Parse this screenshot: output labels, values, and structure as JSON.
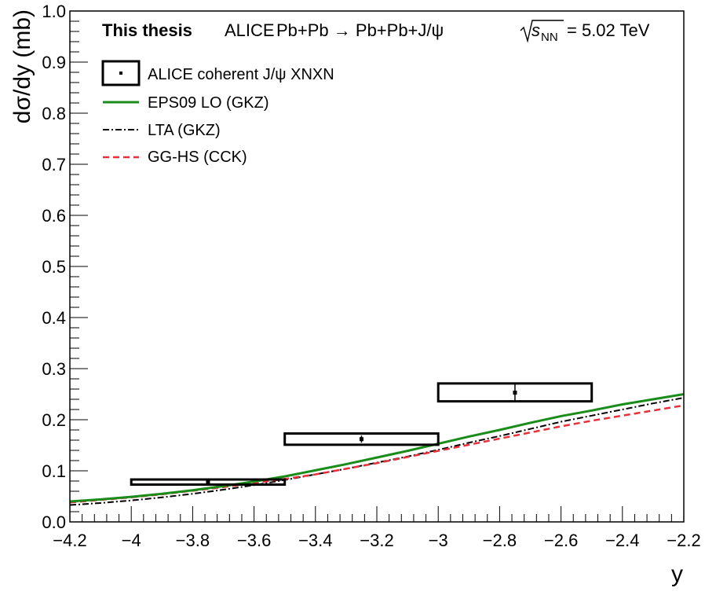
{
  "chart_data": {
    "type": "line",
    "header": {
      "bold": "This thesis",
      "experiment": "ALICE",
      "process": "Pb+Pb → Pb+Pb+J/ψ",
      "energy_symbol": "s",
      "energy_subscript": "NN",
      "energy_value": "= 5.02 TeV"
    },
    "xlabel": "y",
    "ylabel": "dσ/dy (mb)",
    "xlim": [
      -4.2,
      -2.2
    ],
    "ylim": [
      0.0,
      1.0
    ],
    "x_ticks": [
      -4.2,
      -4.0,
      -3.8,
      -3.6,
      -3.4,
      -3.2,
      -3.0,
      -2.8,
      -2.6,
      -2.4,
      -2.2
    ],
    "x_tick_labels": [
      "−4.2",
      "−4",
      "−3.8",
      "−3.6",
      "−3.4",
      "−3.2",
      "−3",
      "−2.8",
      "−2.6",
      "−2.4",
      "−2.2"
    ],
    "y_ticks": [
      0.0,
      0.1,
      0.2,
      0.3,
      0.4,
      0.5,
      0.6,
      0.7,
      0.8,
      0.9,
      1.0
    ],
    "y_tick_labels": [
      "0.0",
      "0.1",
      "0.2",
      "0.3",
      "0.4",
      "0.5",
      "0.6",
      "0.7",
      "0.8",
      "0.9",
      "1.0"
    ],
    "grid": false,
    "legend_position": "top-left",
    "data_points": {
      "name": "ALICE coherent J/ψ XNXN",
      "color": "#000000",
      "points": [
        {
          "x": -3.75,
          "y": 0.078,
          "x_low": -4.0,
          "x_high": -3.5,
          "syst_low": 0.073,
          "syst_high": 0.083,
          "stat_low": 0.072,
          "stat_high": 0.084
        },
        {
          "x": -3.25,
          "y": 0.162,
          "x_low": -3.5,
          "x_high": -3.0,
          "syst_low": 0.151,
          "syst_high": 0.173,
          "stat_low": 0.155,
          "stat_high": 0.169
        },
        {
          "x": -2.75,
          "y": 0.253,
          "x_low": -3.0,
          "x_high": -2.5,
          "syst_low": 0.236,
          "syst_high": 0.271,
          "stat_low": 0.237,
          "stat_high": 0.272
        }
      ]
    },
    "series": [
      {
        "name": "EPS09 LO (GKZ)",
        "color": "#1a8c1a",
        "dash": "solid",
        "x": [
          -4.2,
          -4.1,
          -4.0,
          -3.9,
          -3.8,
          -3.7,
          -3.6,
          -3.5,
          -3.4,
          -3.3,
          -3.2,
          -3.1,
          -3.0,
          -2.9,
          -2.8,
          -2.7,
          -2.6,
          -2.5,
          -2.4,
          -2.3,
          -2.2
        ],
        "y": [
          0.04,
          0.044,
          0.049,
          0.055,
          0.062,
          0.07,
          0.079,
          0.089,
          0.101,
          0.113,
          0.126,
          0.139,
          0.153,
          0.167,
          0.18,
          0.194,
          0.207,
          0.218,
          0.23,
          0.24,
          0.25
        ]
      },
      {
        "name": "LTA (GKZ)",
        "color": "#000000",
        "dash": "dashdot",
        "x": [
          -4.2,
          -4.1,
          -4.0,
          -3.9,
          -3.8,
          -3.7,
          -3.6,
          -3.5,
          -3.4,
          -3.3,
          -3.2,
          -3.1,
          -3.0,
          -2.9,
          -2.8,
          -2.7,
          -2.6,
          -2.5,
          -2.4,
          -2.3,
          -2.2
        ],
        "y": [
          0.033,
          0.037,
          0.042,
          0.048,
          0.055,
          0.063,
          0.072,
          0.082,
          0.093,
          0.104,
          0.116,
          0.128,
          0.141,
          0.155,
          0.168,
          0.182,
          0.196,
          0.208,
          0.22,
          0.232,
          0.243
        ]
      },
      {
        "name": "GG-HS (CCK)",
        "color": "#e8303a",
        "dash": "dashed",
        "x": [
          -4.2,
          -4.1,
          -4.0,
          -3.9,
          -3.8,
          -3.7,
          -3.6,
          -3.5,
          -3.4,
          -3.3,
          -3.2,
          -3.1,
          -3.0,
          -2.9,
          -2.8,
          -2.7,
          -2.6,
          -2.5,
          -2.4,
          -2.3,
          -2.2
        ],
        "y": [
          0.038,
          0.043,
          0.048,
          0.054,
          0.061,
          0.068,
          0.076,
          0.084,
          0.093,
          0.104,
          0.115,
          0.127,
          0.139,
          0.151,
          0.163,
          0.175,
          0.187,
          0.198,
          0.208,
          0.218,
          0.228
        ]
      }
    ]
  }
}
